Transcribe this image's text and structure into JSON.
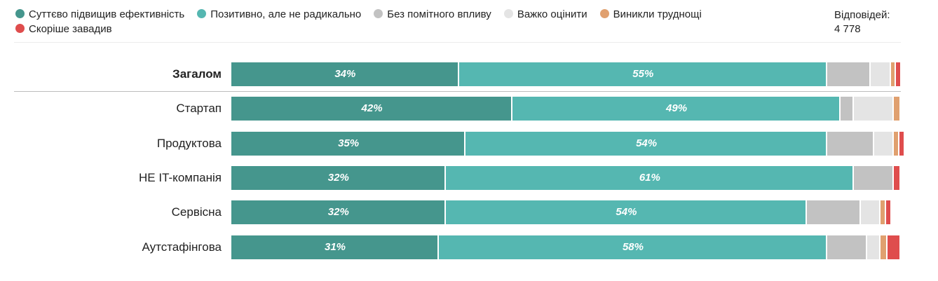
{
  "legend": [
    {
      "label": "Суттєво підвищив ефективність",
      "color": "#45968d"
    },
    {
      "label": "Позитивно, але не радикально",
      "color": "#55b7b1"
    },
    {
      "label": "Без помітного впливу",
      "color": "#c2c2c2"
    },
    {
      "label": "Важко оцінити",
      "color": "#e4e4e4"
    },
    {
      "label": "Виникли труднощі",
      "color": "#e0a06f"
    },
    {
      "label": "Скоріше завадив",
      "color": "#df4d4d"
    }
  ],
  "responses": {
    "label": "Відповідей:",
    "value": "4 778"
  },
  "chart_data": {
    "type": "bar",
    "orientation": "horizontal",
    "stacked": true,
    "xlim": [
      0,
      100
    ],
    "unit": "%",
    "categories": [
      "Загалом",
      "Стартап",
      "Продуктова",
      "НЕ IT-компанія",
      "Сервісна",
      "Аутстафінгова"
    ],
    "highlight_category": "Загалом",
    "series": [
      {
        "name": "Суттєво підвищив ефективність",
        "color": "#45968d",
        "values": [
          34,
          42,
          35,
          32,
          32,
          31
        ],
        "labels": [
          "34%",
          "42%",
          "35%",
          "32%",
          "32%",
          "31%"
        ]
      },
      {
        "name": "Позитивно, але не радикально",
        "color": "#55b7b1",
        "values": [
          55,
          49,
          54,
          61,
          54,
          58
        ],
        "labels": [
          "55%",
          "49%",
          "54%",
          "61%",
          "54%",
          "58%"
        ]
      },
      {
        "name": "Без помітного впливу",
        "color": "#c2c2c2",
        "values": [
          6.5,
          2,
          7,
          6,
          8,
          6
        ],
        "labels": [
          "",
          "",
          "",
          "",
          "",
          ""
        ]
      },
      {
        "name": "Важко оцінити",
        "color": "#e4e4e4",
        "values": [
          3,
          6,
          3,
          0,
          3,
          2
        ],
        "labels": [
          "",
          "",
          "",
          "",
          "",
          ""
        ]
      },
      {
        "name": "Виникли труднощі",
        "color": "#e0a06f",
        "values": [
          0.8,
          1,
          0.8,
          0,
          0.8,
          1
        ],
        "labels": [
          "",
          "",
          "",
          "",
          "",
          ""
        ]
      },
      {
        "name": "Скоріше завадив",
        "color": "#df4d4d",
        "values": [
          0.8,
          0,
          0.8,
          1,
          0.8,
          2
        ],
        "labels": [
          "",
          "",
          "",
          "",
          "",
          ""
        ]
      }
    ]
  }
}
